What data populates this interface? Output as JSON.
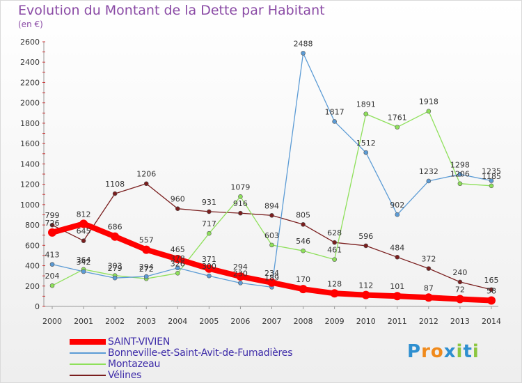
{
  "header": {
    "title": "Evolution du Montant de la Dette par Habitant",
    "unit": "(en €)"
  },
  "logo": {
    "letters": [
      "P",
      "r",
      "o",
      "x",
      "i",
      "t",
      "i"
    ],
    "colors": [
      "#2e8fd0",
      "#f08a1c",
      "#f08a1c",
      "#2e8fd0",
      "#8cc63f",
      "#2e8fd0",
      "#8cc63f"
    ]
  },
  "chart_data": {
    "type": "line",
    "x": [
      "2000",
      "2001",
      "2002",
      "2003",
      "2004",
      "2005",
      "2006",
      "2007",
      "2008",
      "2009",
      "2010",
      "2011",
      "2012",
      "2013",
      "2014"
    ],
    "ylim": [
      0,
      2600
    ],
    "yticks": [
      "0",
      "200",
      "400",
      "600",
      "800",
      "1000",
      "1200",
      "1400",
      "1600",
      "1800",
      "2000",
      "2200",
      "2400",
      "2600"
    ],
    "grid": false,
    "legend_position": "bottom-left",
    "series": [
      {
        "name": "SAINT-VIVIEN",
        "color": "#ff0000",
        "thick": true,
        "values": [
          726,
          812,
          686,
          557,
          465,
          371,
          294,
          234,
          170,
          128,
          112,
          101,
          87,
          72,
          58
        ],
        "labels": [
          "726",
          "812",
          "686",
          "557",
          "465",
          "371",
          "294",
          "234",
          "170",
          "128",
          "112",
          "101",
          "87",
          "72",
          "58"
        ]
      },
      {
        "name": "Bonneville-et-Saint-Avit-de-Fumadières",
        "color": "#5b9bd5",
        "thick": false,
        "values": [
          413,
          342,
          279,
          294,
          378,
          300,
          230,
          189,
          2488,
          1817,
          1512,
          902,
          1232,
          1298,
          1235
        ],
        "labels": [
          "413",
          "342",
          "279",
          "294",
          "378",
          "300",
          "230",
          "189",
          "2488",
          "1817",
          "1512",
          "902",
          "1232",
          "1298",
          "1235"
        ]
      },
      {
        "name": "Montazeau",
        "color": "#8ee05a",
        "thick": false,
        "values": [
          204,
          364,
          303,
          272,
          326,
          null,
          1079,
          603,
          546,
          461,
          1891,
          1761,
          1918,
          1206,
          1185
        ],
        "labels": [
          "204",
          "364",
          "303",
          "272",
          "326",
          "717",
          "1079",
          "603",
          "546",
          "461",
          "1891",
          "1761",
          "1918",
          "1206",
          "1185"
        ],
        "extra_2005": 717
      },
      {
        "name": "Vélines",
        "color": "#7a1e1e",
        "thick": false,
        "values": [
          799,
          645,
          1108,
          1206,
          960,
          931,
          916,
          894,
          805,
          628,
          596,
          484,
          372,
          240,
          165
        ],
        "labels": [
          "799",
          "645",
          "1108",
          "1206",
          "960",
          "931",
          "916",
          "894",
          "805",
          "628",
          "596",
          "484",
          "372",
          "240",
          "165"
        ]
      }
    ]
  }
}
